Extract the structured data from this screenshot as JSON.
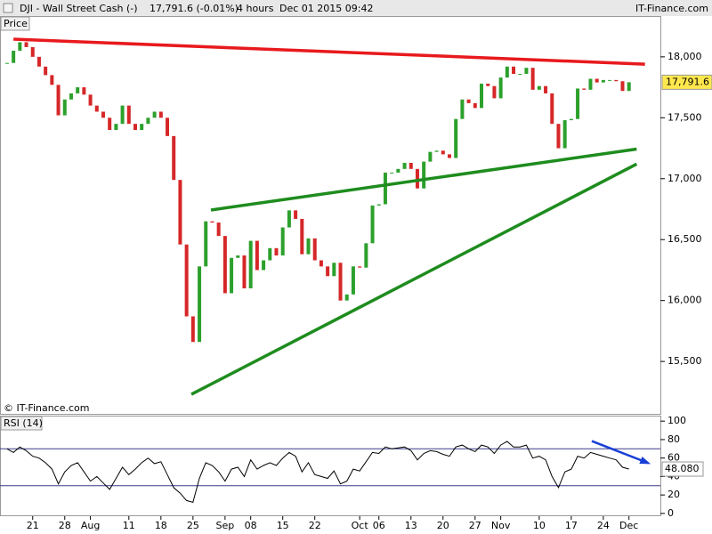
{
  "chart_data": {
    "type": "candlestick",
    "header": {
      "symbol": "DJI - Wall Street Cash (-)",
      "quote": "17,791.6 (-0.01%)",
      "period": "4 hours",
      "time": "Dec 01 2015 09:42",
      "site": "IT-Finance.com"
    },
    "panel_label": "Price",
    "watermark": "© IT-Finance.com",
    "up_color": "#2ca02c",
    "down_color": "#d62728",
    "xlim": [
      -1.1,
      101.9
    ],
    "xticks": [
      {
        "value": 4,
        "label": "21"
      },
      {
        "value": 9,
        "label": "28"
      },
      {
        "value": 13,
        "label": "Aug"
      },
      {
        "value": 19,
        "label": "11"
      },
      {
        "value": 24,
        "label": "18"
      },
      {
        "value": 29,
        "label": "25"
      },
      {
        "value": 34,
        "label": "Sep"
      },
      {
        "value": 38,
        "label": "08"
      },
      {
        "value": 43,
        "label": "15"
      },
      {
        "value": 48,
        "label": "22"
      },
      {
        "value": 55,
        "label": "Oct"
      },
      {
        "value": 58,
        "label": "06"
      },
      {
        "value": 63,
        "label": "13"
      },
      {
        "value": 68,
        "label": "20"
      },
      {
        "value": 73,
        "label": "27"
      },
      {
        "value": 77,
        "label": "Nov"
      },
      {
        "value": 83,
        "label": "10"
      },
      {
        "value": 88,
        "label": "17"
      },
      {
        "value": 93,
        "label": "24"
      },
      {
        "value": 97,
        "label": "Dec"
      }
    ],
    "ylim": [
      15070,
      18335
    ],
    "yticks": [
      {
        "value": 15500,
        "label": "15,500"
      },
      {
        "value": 16000,
        "label": "16,000"
      },
      {
        "value": 16500,
        "label": "16,500"
      },
      {
        "value": 17000,
        "label": "17,000"
      },
      {
        "value": 17500,
        "label": "17,500"
      },
      {
        "value": 18000,
        "label": "18,000"
      }
    ],
    "values": [
      17950,
      18050,
      18120,
      18080,
      18000,
      17920,
      17850,
      17770,
      17520,
      17650,
      17700,
      17750,
      17690,
      17600,
      17550,
      17500,
      17400,
      17450,
      17600,
      17450,
      17400,
      17450,
      17500,
      17550,
      17500,
      17350,
      16990,
      16460,
      15870,
      15660,
      16280,
      16650,
      16640,
      16530,
      16060,
      16350,
      16370,
      16100,
      16490,
      16250,
      16330,
      16430,
      16370,
      16600,
      16740,
      16670,
      16380,
      16510,
      16330,
      16280,
      16200,
      16310,
      16000,
      16050,
      16280,
      16270,
      16470,
      16780,
      16790,
      17050,
      17050,
      17080,
      17130,
      17080,
      16920,
      17140,
      17220,
      17230,
      17200,
      17170,
      17490,
      17650,
      17620,
      17580,
      17780,
      17760,
      17660,
      17830,
      17920,
      17860,
      17860,
      17910,
      17730,
      17760,
      17700,
      17450,
      17250,
      17480,
      17490,
      17740,
      17730,
      17820,
      17790,
      17810,
      17810,
      17800,
      17720,
      17791.6
    ],
    "current": {
      "value": 17791.6,
      "label": "17,791.6"
    },
    "trendlines": [
      {
        "color": "#e8191d",
        "x": [
          1,
          99.5
        ],
        "y": [
          18145,
          17940
        ]
      },
      {
        "color": "#1e8c1e",
        "x": [
          31.8,
          98.2
        ],
        "y": [
          16743,
          17243
        ]
      },
      {
        "color": "#1e8c1e",
        "x": [
          28.75,
          98.2
        ],
        "y": [
          15230,
          17120
        ]
      }
    ],
    "rsi": {
      "name": "RSI (14)",
      "color": "#000000",
      "ylim": [
        -3,
        105
      ],
      "yticks": [
        0,
        20,
        40,
        60,
        80,
        100
      ],
      "levels": [
        30,
        70
      ],
      "values": [
        70,
        66,
        72,
        68,
        62,
        60,
        55,
        48,
        32,
        45,
        52,
        55,
        45,
        35,
        40,
        33,
        26,
        38,
        50,
        42,
        48,
        55,
        60,
        54,
        56,
        42,
        28,
        22,
        14,
        12,
        38,
        55,
        52,
        45,
        35,
        48,
        50,
        40,
        58,
        48,
        52,
        55,
        52,
        60,
        66,
        62,
        45,
        55,
        42,
        40,
        38,
        46,
        32,
        35,
        48,
        46,
        56,
        66,
        65,
        72,
        70,
        71,
        72,
        68,
        58,
        65,
        68,
        67,
        64,
        62,
        72,
        74,
        70,
        67,
        74,
        72,
        65,
        74,
        78,
        72,
        72,
        74,
        60,
        62,
        58,
        40,
        28,
        45,
        48,
        62,
        60,
        66,
        64,
        62,
        60,
        58,
        50,
        48.08
      ],
      "current": {
        "value": 48.08,
        "label": "48.080"
      },
      "arrow": {
        "color": "#1a3fd6",
        "x": [
          91.2,
          100
        ],
        "y": [
          78.4,
          54.6
        ]
      }
    }
  }
}
